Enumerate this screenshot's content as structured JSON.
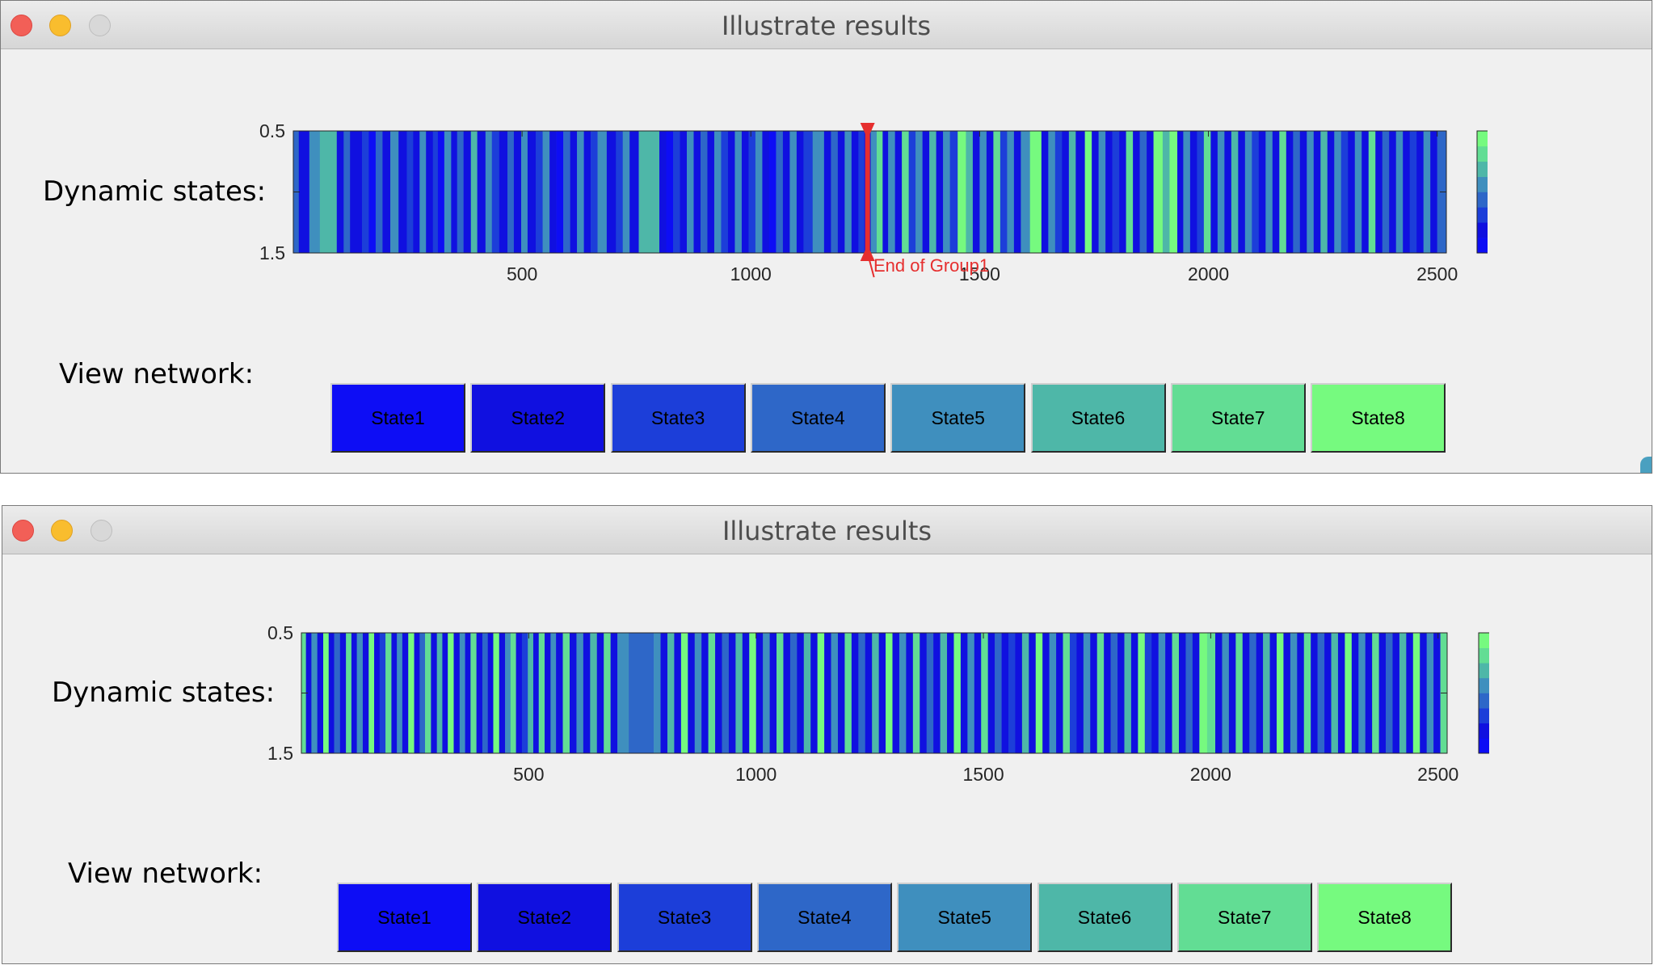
{
  "colors": {
    "state_colors": [
      "#0d0df5",
      "#1010e0",
      "#1c3ed9",
      "#2e67c8",
      "#3f8fbe",
      "#4eb7a8",
      "#62dd94",
      "#76fa7f"
    ],
    "annotation": "#e62e2e"
  },
  "windows": [
    {
      "title": "Illustrate results",
      "dynamic_label": "Dynamic states:",
      "network_label": "View network:",
      "annotation": "End of Group1",
      "buttons": [
        "State1",
        "State2",
        "State3",
        "State4",
        "State5",
        "State6",
        "State7",
        "State8"
      ]
    },
    {
      "title": "Illustrate results",
      "dynamic_label": "Dynamic states:",
      "network_label": "View network:",
      "buttons": [
        "State1",
        "State2",
        "State3",
        "State4",
        "State5",
        "State6",
        "State7",
        "State8"
      ]
    }
  ],
  "chart_data": [
    {
      "type": "heatmap",
      "xlim": [
        0,
        2520
      ],
      "ylim": [
        0.5,
        1.5
      ],
      "x_ticks": [
        "500",
        "1000",
        "1500",
        "2000",
        "2500"
      ],
      "y_ticks": [
        "0.5",
        "1.5"
      ],
      "colorbar_ticks": [
        "8",
        "6",
        "4",
        "2"
      ],
      "colorbar_range": [
        1,
        8
      ],
      "annotation_x": 1255,
      "annotation_text": "End of Group1",
      "states": [
        [
          0,
          4
        ],
        [
          12,
          2
        ],
        [
          35,
          5
        ],
        [
          58,
          6
        ],
        [
          95,
          2
        ],
        [
          110,
          4
        ],
        [
          124,
          2
        ],
        [
          150,
          3
        ],
        [
          165,
          1
        ],
        [
          180,
          4
        ],
        [
          195,
          2
        ],
        [
          212,
          5
        ],
        [
          230,
          2
        ],
        [
          248,
          3
        ],
        [
          262,
          2
        ],
        [
          276,
          5
        ],
        [
          290,
          2
        ],
        [
          305,
          3
        ],
        [
          316,
          1
        ],
        [
          330,
          5
        ],
        [
          345,
          2
        ],
        [
          358,
          4
        ],
        [
          372,
          2
        ],
        [
          388,
          6
        ],
        [
          402,
          2
        ],
        [
          420,
          5
        ],
        [
          434,
          3
        ],
        [
          450,
          2
        ],
        [
          468,
          4
        ],
        [
          482,
          2
        ],
        [
          498,
          5
        ],
        [
          512,
          2
        ],
        [
          530,
          3
        ],
        [
          545,
          5
        ],
        [
          560,
          2
        ],
        [
          575,
          1
        ],
        [
          590,
          4
        ],
        [
          605,
          2
        ],
        [
          620,
          5
        ],
        [
          635,
          2
        ],
        [
          650,
          3
        ],
        [
          665,
          5
        ],
        [
          685,
          2
        ],
        [
          705,
          3
        ],
        [
          720,
          5
        ],
        [
          735,
          2
        ],
        [
          755,
          6
        ],
        [
          800,
          2
        ],
        [
          815,
          1
        ],
        [
          830,
          3
        ],
        [
          845,
          2
        ],
        [
          860,
          5
        ],
        [
          875,
          2
        ],
        [
          890,
          4
        ],
        [
          905,
          2
        ],
        [
          920,
          5
        ],
        [
          935,
          3
        ],
        [
          950,
          2
        ],
        [
          965,
          5
        ],
        [
          980,
          2
        ],
        [
          995,
          3
        ],
        [
          1010,
          5
        ],
        [
          1025,
          2
        ],
        [
          1040,
          1
        ],
        [
          1055,
          4
        ],
        [
          1070,
          2
        ],
        [
          1085,
          5
        ],
        [
          1100,
          2
        ],
        [
          1115,
          3
        ],
        [
          1135,
          5
        ],
        [
          1160,
          2
        ],
        [
          1175,
          4
        ],
        [
          1190,
          2
        ],
        [
          1205,
          5
        ],
        [
          1220,
          2
        ],
        [
          1235,
          3
        ],
        [
          1248,
          2
        ],
        [
          1262,
          5
        ],
        [
          1275,
          7
        ],
        [
          1288,
          2
        ],
        [
          1300,
          5
        ],
        [
          1315,
          2
        ],
        [
          1330,
          7
        ],
        [
          1345,
          3
        ],
        [
          1360,
          5
        ],
        [
          1375,
          2
        ],
        [
          1390,
          6
        ],
        [
          1405,
          2
        ],
        [
          1420,
          5
        ],
        [
          1435,
          3
        ],
        [
          1452,
          8
        ],
        [
          1470,
          6
        ],
        [
          1485,
          2
        ],
        [
          1500,
          5
        ],
        [
          1515,
          2
        ],
        [
          1530,
          7
        ],
        [
          1545,
          3
        ],
        [
          1560,
          5
        ],
        [
          1575,
          2
        ],
        [
          1590,
          5
        ],
        [
          1610,
          8
        ],
        [
          1635,
          2
        ],
        [
          1650,
          5
        ],
        [
          1665,
          3
        ],
        [
          1680,
          2
        ],
        [
          1695,
          6
        ],
        [
          1710,
          2
        ],
        [
          1730,
          8
        ],
        [
          1745,
          2
        ],
        [
          1760,
          5
        ],
        [
          1775,
          2
        ],
        [
          1790,
          3
        ],
        [
          1805,
          2
        ],
        [
          1820,
          7
        ],
        [
          1835,
          2
        ],
        [
          1850,
          4
        ],
        [
          1865,
          2
        ],
        [
          1880,
          8
        ],
        [
          1900,
          6
        ],
        [
          1915,
          8
        ],
        [
          1932,
          2
        ],
        [
          1945,
          5
        ],
        [
          1960,
          2
        ],
        [
          1975,
          3
        ],
        [
          1990,
          7
        ],
        [
          2005,
          2
        ],
        [
          2020,
          5
        ],
        [
          2035,
          2
        ],
        [
          2050,
          6
        ],
        [
          2065,
          2
        ],
        [
          2080,
          5
        ],
        [
          2095,
          3
        ],
        [
          2110,
          2
        ],
        [
          2125,
          5
        ],
        [
          2140,
          2
        ],
        [
          2155,
          7
        ],
        [
          2170,
          2
        ],
        [
          2185,
          4
        ],
        [
          2200,
          2
        ],
        [
          2215,
          5
        ],
        [
          2230,
          2
        ],
        [
          2245,
          6
        ],
        [
          2260,
          2
        ],
        [
          2275,
          5
        ],
        [
          2290,
          3
        ],
        [
          2305,
          2
        ],
        [
          2320,
          5
        ],
        [
          2335,
          2
        ],
        [
          2350,
          7
        ],
        [
          2365,
          2
        ],
        [
          2380,
          4
        ],
        [
          2395,
          2
        ],
        [
          2410,
          5
        ],
        [
          2425,
          2
        ],
        [
          2440,
          3
        ],
        [
          2455,
          2
        ],
        [
          2470,
          5
        ],
        [
          2485,
          2
        ],
        [
          2500,
          4
        ]
      ]
    },
    {
      "type": "heatmap",
      "xlim": [
        0,
        2520
      ],
      "ylim": [
        0.5,
        1.5
      ],
      "x_ticks": [
        "500",
        "1000",
        "1500",
        "2000",
        "2500"
      ],
      "y_ticks": [
        "0.5",
        "1.5"
      ],
      "colorbar_ticks": [
        "8",
        "6",
        "4",
        "2"
      ],
      "colorbar_range": [
        1,
        8
      ],
      "states": [
        [
          0,
          7
        ],
        [
          10,
          2
        ],
        [
          22,
          5
        ],
        [
          35,
          2
        ],
        [
          48,
          8
        ],
        [
          60,
          2
        ],
        [
          72,
          4
        ],
        [
          85,
          2
        ],
        [
          98,
          7
        ],
        [
          110,
          2
        ],
        [
          122,
          5
        ],
        [
          135,
          2
        ],
        [
          148,
          8
        ],
        [
          160,
          2
        ],
        [
          172,
          3
        ],
        [
          185,
          7
        ],
        [
          198,
          2
        ],
        [
          210,
          5
        ],
        [
          222,
          2
        ],
        [
          235,
          8
        ],
        [
          248,
          2
        ],
        [
          260,
          4
        ],
        [
          272,
          7
        ],
        [
          285,
          2
        ],
        [
          298,
          6
        ],
        [
          310,
          2
        ],
        [
          322,
          8
        ],
        [
          335,
          2
        ],
        [
          348,
          5
        ],
        [
          360,
          2
        ],
        [
          372,
          7
        ],
        [
          385,
          2
        ],
        [
          398,
          4
        ],
        [
          410,
          2
        ],
        [
          422,
          8
        ],
        [
          435,
          2
        ],
        [
          448,
          5
        ],
        [
          460,
          7
        ],
        [
          472,
          2
        ],
        [
          485,
          3
        ],
        [
          498,
          6
        ],
        [
          510,
          2
        ],
        [
          522,
          7
        ],
        [
          535,
          2
        ],
        [
          548,
          5
        ],
        [
          560,
          2
        ],
        [
          575,
          7
        ],
        [
          590,
          2
        ],
        [
          605,
          5
        ],
        [
          620,
          2
        ],
        [
          635,
          6
        ],
        [
          650,
          2
        ],
        [
          665,
          7
        ],
        [
          680,
          2
        ],
        [
          695,
          5
        ],
        [
          720,
          4
        ],
        [
          775,
          5
        ],
        [
          790,
          2
        ],
        [
          805,
          6
        ],
        [
          820,
          2
        ],
        [
          835,
          8
        ],
        [
          850,
          2
        ],
        [
          865,
          5
        ],
        [
          880,
          2
        ],
        [
          895,
          7
        ],
        [
          910,
          2
        ],
        [
          925,
          4
        ],
        [
          940,
          2
        ],
        [
          955,
          6
        ],
        [
          970,
          2
        ],
        [
          985,
          8
        ],
        [
          1000,
          2
        ],
        [
          1015,
          5
        ],
        [
          1030,
          2
        ],
        [
          1045,
          7
        ],
        [
          1060,
          2
        ],
        [
          1075,
          4
        ],
        [
          1090,
          2
        ],
        [
          1105,
          6
        ],
        [
          1120,
          2
        ],
        [
          1135,
          8
        ],
        [
          1150,
          2
        ],
        [
          1165,
          5
        ],
        [
          1180,
          2
        ],
        [
          1195,
          7
        ],
        [
          1210,
          2
        ],
        [
          1225,
          4
        ],
        [
          1240,
          2
        ],
        [
          1255,
          6
        ],
        [
          1270,
          2
        ],
        [
          1285,
          8
        ],
        [
          1300,
          2
        ],
        [
          1315,
          5
        ],
        [
          1330,
          2
        ],
        [
          1345,
          7
        ],
        [
          1360,
          2
        ],
        [
          1375,
          4
        ],
        [
          1390,
          2
        ],
        [
          1405,
          6
        ],
        [
          1420,
          2
        ],
        [
          1435,
          8
        ],
        [
          1450,
          2
        ],
        [
          1465,
          5
        ],
        [
          1480,
          2
        ],
        [
          1495,
          7
        ],
        [
          1510,
          2
        ],
        [
          1525,
          4
        ],
        [
          1540,
          2
        ],
        [
          1555,
          3
        ],
        [
          1570,
          2
        ],
        [
          1585,
          6
        ],
        [
          1600,
          2
        ],
        [
          1615,
          8
        ],
        [
          1630,
          2
        ],
        [
          1645,
          5
        ],
        [
          1660,
          2
        ],
        [
          1675,
          7
        ],
        [
          1690,
          3
        ],
        [
          1705,
          2
        ],
        [
          1720,
          5
        ],
        [
          1735,
          2
        ],
        [
          1750,
          7
        ],
        [
          1765,
          2
        ],
        [
          1780,
          4
        ],
        [
          1795,
          2
        ],
        [
          1810,
          6
        ],
        [
          1825,
          2
        ],
        [
          1840,
          8
        ],
        [
          1855,
          3
        ],
        [
          1870,
          2
        ],
        [
          1885,
          5
        ],
        [
          1900,
          2
        ],
        [
          1915,
          7
        ],
        [
          1930,
          2
        ],
        [
          1945,
          4
        ],
        [
          1960,
          2
        ],
        [
          1975,
          8
        ],
        [
          1992,
          7
        ],
        [
          2010,
          2
        ],
        [
          2025,
          5
        ],
        [
          2040,
          2
        ],
        [
          2055,
          7
        ],
        [
          2070,
          2
        ],
        [
          2085,
          4
        ],
        [
          2100,
          2
        ],
        [
          2115,
          6
        ],
        [
          2130,
          2
        ],
        [
          2145,
          8
        ],
        [
          2160,
          2
        ],
        [
          2175,
          5
        ],
        [
          2190,
          2
        ],
        [
          2205,
          7
        ],
        [
          2220,
          2
        ],
        [
          2235,
          4
        ],
        [
          2250,
          2
        ],
        [
          2265,
          6
        ],
        [
          2280,
          2
        ],
        [
          2295,
          8
        ],
        [
          2310,
          2
        ],
        [
          2325,
          5
        ],
        [
          2340,
          2
        ],
        [
          2355,
          7
        ],
        [
          2370,
          2
        ],
        [
          2385,
          4
        ],
        [
          2400,
          2
        ],
        [
          2415,
          6
        ],
        [
          2430,
          2
        ],
        [
          2445,
          8
        ],
        [
          2460,
          2
        ],
        [
          2475,
          5
        ],
        [
          2490,
          2
        ],
        [
          2505,
          7
        ]
      ]
    }
  ]
}
